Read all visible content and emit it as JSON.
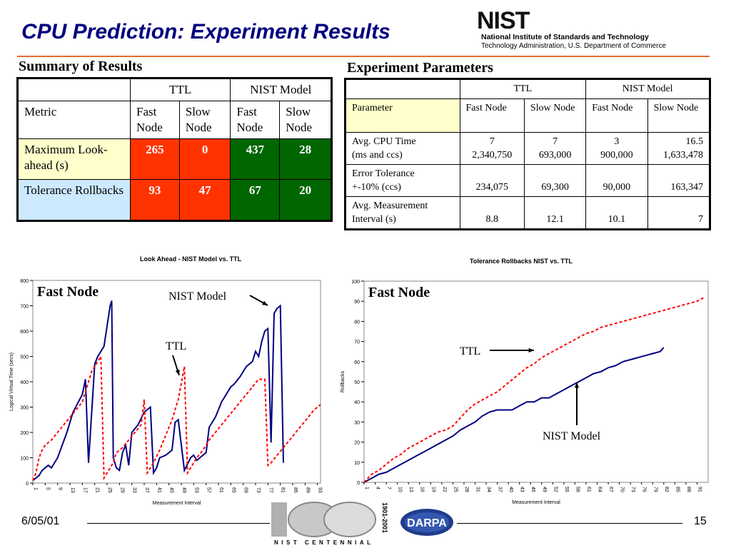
{
  "title": "CPU Prediction: Experiment Results",
  "nist": {
    "wordmark": "NIST",
    "line1": "National Institute of Standards and Technology",
    "line2": "Technology Administration, U.S. Department of Commerce"
  },
  "summary": {
    "heading": "Summary of Results",
    "group_headers": [
      "TTL",
      "NIST Model"
    ],
    "metric_label": "Metric",
    "col_fast": "Fast Node",
    "col_slow": "Slow Node",
    "rows": [
      {
        "label": "Maximum Look-ahead (s)",
        "values": [
          "265",
          "0",
          "437",
          "28"
        ]
      },
      {
        "label": "Tolerance Rollbacks",
        "values": [
          "93",
          "47",
          "67",
          "20"
        ]
      }
    ]
  },
  "params": {
    "heading": "Experiment Parameters",
    "group_headers": [
      "TTL",
      "NIST Model"
    ],
    "param_label": "Parameter",
    "col_fast": "Fast Node",
    "col_slow": "Slow Node",
    "rows": [
      {
        "label1": "Avg. CPU Time",
        "label2": "(ms and ccs)",
        "line1": [
          "7",
          "7",
          "3",
          "16.5"
        ],
        "line2": [
          "2,340,750",
          "693,000",
          "900,000",
          "1,633,478"
        ]
      },
      {
        "label1": "Error Tolerance",
        "label2": "+-10% (ccs)",
        "line1": [
          "",
          "",
          "",
          ""
        ],
        "line2": [
          "234,075",
          "69,300",
          "90,000",
          "163,347"
        ]
      },
      {
        "label1": "Avg. Measurement",
        "label2": "Interval (s)",
        "line1": [
          "",
          "",
          "",
          ""
        ],
        "line2": [
          "8.8",
          "12.1",
          "10.1",
          "7"
        ]
      }
    ]
  },
  "chart_data": [
    {
      "type": "line",
      "title": "Look Ahead - NIST Model vs. TTL",
      "inner_label": "Fast Node",
      "xlabel": "Measurement Interval",
      "ylabel": "Logical Virtual Time (secs)",
      "ylim": [
        0,
        800
      ],
      "yticks": [
        0,
        100,
        200,
        300,
        400,
        500,
        600,
        700,
        800
      ],
      "xlim": [
        1,
        94
      ],
      "xticks": [
        1,
        5,
        9,
        13,
        17,
        21,
        25,
        29,
        33,
        37,
        41,
        45,
        49,
        53,
        57,
        61,
        65,
        69,
        73,
        77,
        81,
        85,
        89,
        93
      ],
      "annotations": {
        "nist": "NIST Model",
        "ttl": "TTL"
      },
      "grid": false,
      "series": [
        {
          "name": "NIST Model",
          "color": "#000080",
          "dash": false,
          "x": [
            1,
            3,
            4,
            5,
            6,
            7,
            9,
            12,
            14,
            17,
            18,
            19,
            21,
            22,
            24,
            26,
            26.5,
            27,
            28,
            29,
            30,
            31,
            32,
            33,
            35,
            37,
            38,
            39,
            40,
            41,
            42,
            44,
            46,
            47,
            48,
            50,
            52,
            53,
            54,
            55,
            57,
            58,
            60,
            61,
            62,
            63,
            64,
            65,
            66,
            68,
            70,
            72,
            73,
            74,
            75,
            76,
            77,
            78,
            79,
            80,
            81,
            82
          ],
          "y": [
            10,
            30,
            50,
            60,
            70,
            60,
            100,
            200,
            280,
            350,
            410,
            80,
            470,
            500,
            540,
            700,
            720,
            100,
            60,
            50,
            120,
            150,
            70,
            200,
            230,
            280,
            290,
            300,
            40,
            60,
            100,
            110,
            130,
            240,
            250,
            50,
            100,
            110,
            90,
            100,
            120,
            220,
            260,
            290,
            320,
            340,
            360,
            380,
            390,
            420,
            460,
            480,
            520,
            500,
            560,
            600,
            610,
            160,
            670,
            690,
            700,
            80
          ]
        },
        {
          "name": "TTL",
          "color": "#ff0000",
          "dash": true,
          "x": [
            1,
            2,
            3,
            4,
            5,
            6,
            7,
            9,
            11,
            13,
            15,
            17,
            19,
            20,
            21,
            22,
            23,
            24,
            25,
            26,
            27,
            28,
            30,
            32,
            34,
            36,
            37,
            38,
            40,
            42,
            44,
            46,
            48,
            50,
            51,
            52,
            53,
            54,
            56,
            58,
            60,
            62,
            64,
            66,
            68,
            70,
            72,
            74,
            76,
            77,
            78,
            80,
            82,
            84,
            86,
            88,
            90,
            92,
            94
          ],
          "y": [
            10,
            40,
            100,
            130,
            150,
            160,
            170,
            200,
            230,
            260,
            290,
            320,
            400,
            440,
            460,
            480,
            500,
            20,
            40,
            60,
            80,
            120,
            140,
            170,
            200,
            230,
            330,
            40,
            80,
            130,
            190,
            250,
            330,
            460,
            40,
            60,
            80,
            100,
            130,
            170,
            200,
            230,
            260,
            290,
            320,
            350,
            380,
            410,
            410,
            70,
            80,
            110,
            140,
            170,
            200,
            230,
            260,
            290,
            310
          ]
        }
      ]
    },
    {
      "type": "line",
      "title": "Tolerance Rollbacks NIST vs. TTL",
      "inner_label": "Fast Node",
      "xlabel": "Measurement Interval",
      "ylabel": "Rollbacks",
      "ylim": [
        0,
        100
      ],
      "yticks": [
        0,
        10,
        20,
        30,
        40,
        50,
        60,
        70,
        80,
        90,
        100
      ],
      "xlim": [
        1,
        94
      ],
      "xticks": [
        1,
        4,
        7,
        10,
        13,
        16,
        19,
        22,
        25,
        28,
        31,
        34,
        37,
        40,
        43,
        46,
        49,
        52,
        55,
        58,
        61,
        64,
        67,
        70,
        73,
        76,
        79,
        82,
        85,
        88,
        91
      ],
      "annotations": {
        "ttl": "TTL",
        "nist": "NIST Model"
      },
      "grid": false,
      "series": [
        {
          "name": "NIST Model",
          "color": "#000080",
          "dash": false,
          "x": [
            1,
            3,
            5,
            7,
            9,
            11,
            13,
            15,
            17,
            19,
            21,
            23,
            25,
            27,
            29,
            31,
            33,
            35,
            37,
            39,
            41,
            43,
            45,
            47,
            49,
            51,
            53,
            55,
            57,
            59,
            61,
            63,
            65,
            67,
            69,
            71,
            73,
            75,
            77,
            79,
            81,
            82
          ],
          "y": [
            0,
            2,
            4,
            5,
            7,
            9,
            11,
            13,
            15,
            17,
            19,
            21,
            23,
            26,
            28,
            30,
            33,
            35,
            36,
            36,
            36,
            38,
            40,
            40,
            42,
            42,
            44,
            46,
            48,
            50,
            52,
            54,
            55,
            57,
            58,
            60,
            61,
            62,
            63,
            64,
            65,
            67
          ]
        },
        {
          "name": "TTL",
          "color": "#ff0000",
          "dash": true,
          "x": [
            1,
            3,
            5,
            7,
            9,
            11,
            13,
            15,
            17,
            19,
            21,
            23,
            25,
            27,
            29,
            31,
            33,
            35,
            37,
            39,
            41,
            43,
            45,
            47,
            49,
            51,
            53,
            55,
            57,
            59,
            61,
            63,
            65,
            67,
            69,
            71,
            73,
            75,
            77,
            79,
            81,
            83,
            85,
            87,
            89,
            91,
            93
          ],
          "y": [
            0,
            4,
            6,
            9,
            12,
            14,
            17,
            19,
            21,
            23,
            25,
            26,
            28,
            32,
            36,
            39,
            41,
            43,
            45,
            48,
            51,
            54,
            57,
            59,
            62,
            64,
            66,
            68,
            70,
            72,
            74,
            75,
            77,
            78,
            79,
            80,
            81,
            82,
            83,
            84,
            85,
            86,
            87,
            88,
            89,
            90,
            92
          ]
        }
      ]
    }
  ],
  "footer": {
    "date": "6/05/01",
    "page": "15",
    "centennial_text": "NIST CENTENNIAL",
    "centennial_years": "1901-2001",
    "darpa": "DARPA"
  }
}
